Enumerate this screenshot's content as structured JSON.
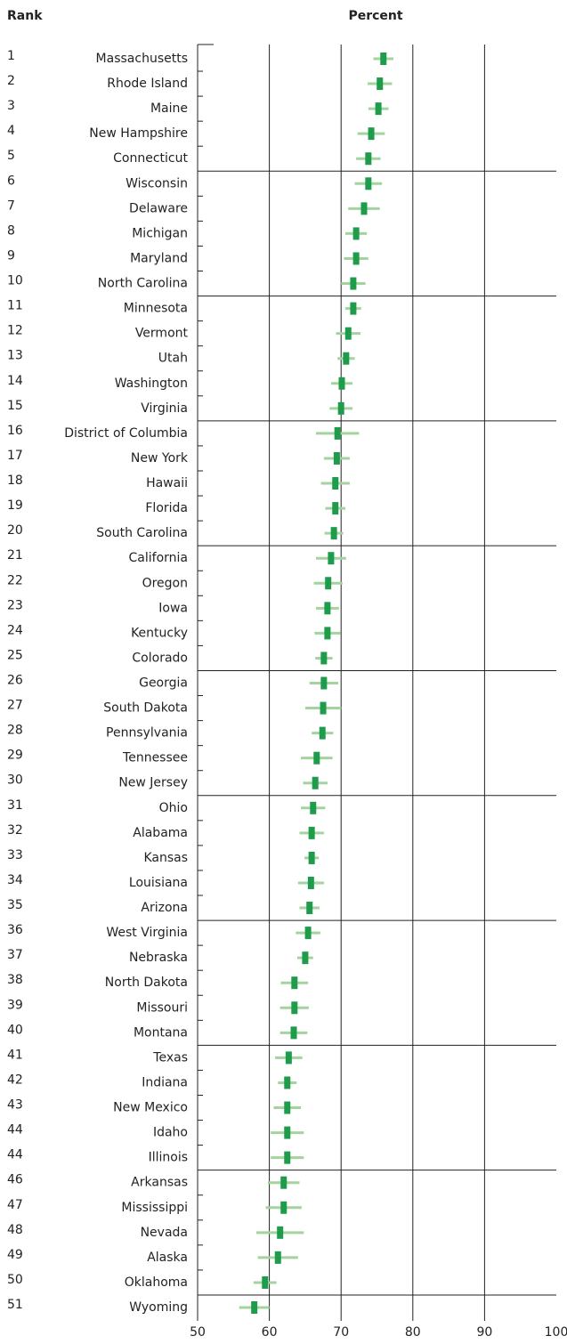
{
  "chart_data": {
    "type": "dot-interval",
    "rank_header": "Rank",
    "xlabel": "Percent",
    "ranks": [
      1,
      2,
      3,
      4,
      5,
      6,
      7,
      8,
      9,
      10,
      11,
      12,
      13,
      14,
      15,
      16,
      17,
      18,
      19,
      20,
      21,
      22,
      23,
      24,
      25,
      26,
      27,
      28,
      29,
      30,
      31,
      32,
      33,
      34,
      35,
      36,
      37,
      38,
      39,
      40,
      41,
      42,
      43,
      44,
      44,
      46,
      47,
      48,
      49,
      50,
      51
    ],
    "categories": [
      "Massachusetts",
      "Rhode Island",
      "Maine",
      "New Hampshire",
      "Connecticut",
      "Wisconsin",
      "Delaware",
      "Michigan",
      "Maryland",
      "North Carolina",
      "Minnesota",
      "Vermont",
      "Utah",
      "Washington",
      "Virginia",
      "District of Columbia",
      "New York",
      "Hawaii",
      "Florida",
      "South Carolina",
      "California",
      "Oregon",
      "Iowa",
      "Kentucky",
      "Colorado",
      "Georgia",
      "South Dakota",
      "Pennsylvania",
      "Tennessee",
      "New Jersey",
      "Ohio",
      "Alabama",
      "Kansas",
      "Louisiana",
      "Arizona",
      "West Virginia",
      "Nebraska",
      "North Dakota",
      "Missouri",
      "Montana",
      "Texas",
      "Indiana",
      "New Mexico",
      "Idaho",
      "Illinois",
      "Arkansas",
      "Mississippi",
      "Nevada",
      "Alaska",
      "Oklahoma",
      "Wyoming"
    ],
    "values": [
      75.9,
      75.4,
      75.2,
      74.2,
      73.8,
      73.8,
      73.2,
      72.1,
      72.1,
      71.7,
      71.7,
      71.0,
      70.7,
      70.1,
      70.0,
      69.5,
      69.4,
      69.2,
      69.2,
      69.0,
      68.6,
      68.2,
      68.1,
      68.1,
      67.6,
      67.6,
      67.5,
      67.4,
      66.6,
      66.4,
      66.1,
      65.9,
      65.9,
      65.8,
      65.6,
      65.4,
      65.0,
      63.5,
      63.5,
      63.4,
      62.7,
      62.5,
      62.5,
      62.5,
      62.5,
      62.0,
      62.0,
      61.5,
      61.2,
      59.4,
      57.9
    ],
    "errors": [
      1.4,
      1.7,
      1.4,
      1.9,
      1.7,
      1.9,
      2.2,
      1.5,
      1.7,
      1.7,
      1.1,
      1.7,
      1.2,
      1.5,
      1.6,
      3.0,
      1.8,
      2.0,
      1.4,
      1.3,
      2.1,
      2.0,
      1.6,
      1.8,
      1.2,
      2.0,
      2.5,
      1.5,
      2.2,
      1.7,
      1.7,
      1.7,
      1.0,
      1.8,
      1.4,
      1.7,
      1.1,
      1.9,
      2.0,
      1.9,
      1.9,
      1.3,
      1.9,
      2.3,
      2.3,
      2.2,
      2.5,
      3.3,
      2.8,
      1.6,
      2.1
    ],
    "color": "#1e9c4c",
    "error_color": "#a3d49d",
    "xlim": [
      50,
      100
    ],
    "xticks": [
      50,
      60,
      70,
      80,
      90,
      100
    ],
    "grid": true
  }
}
